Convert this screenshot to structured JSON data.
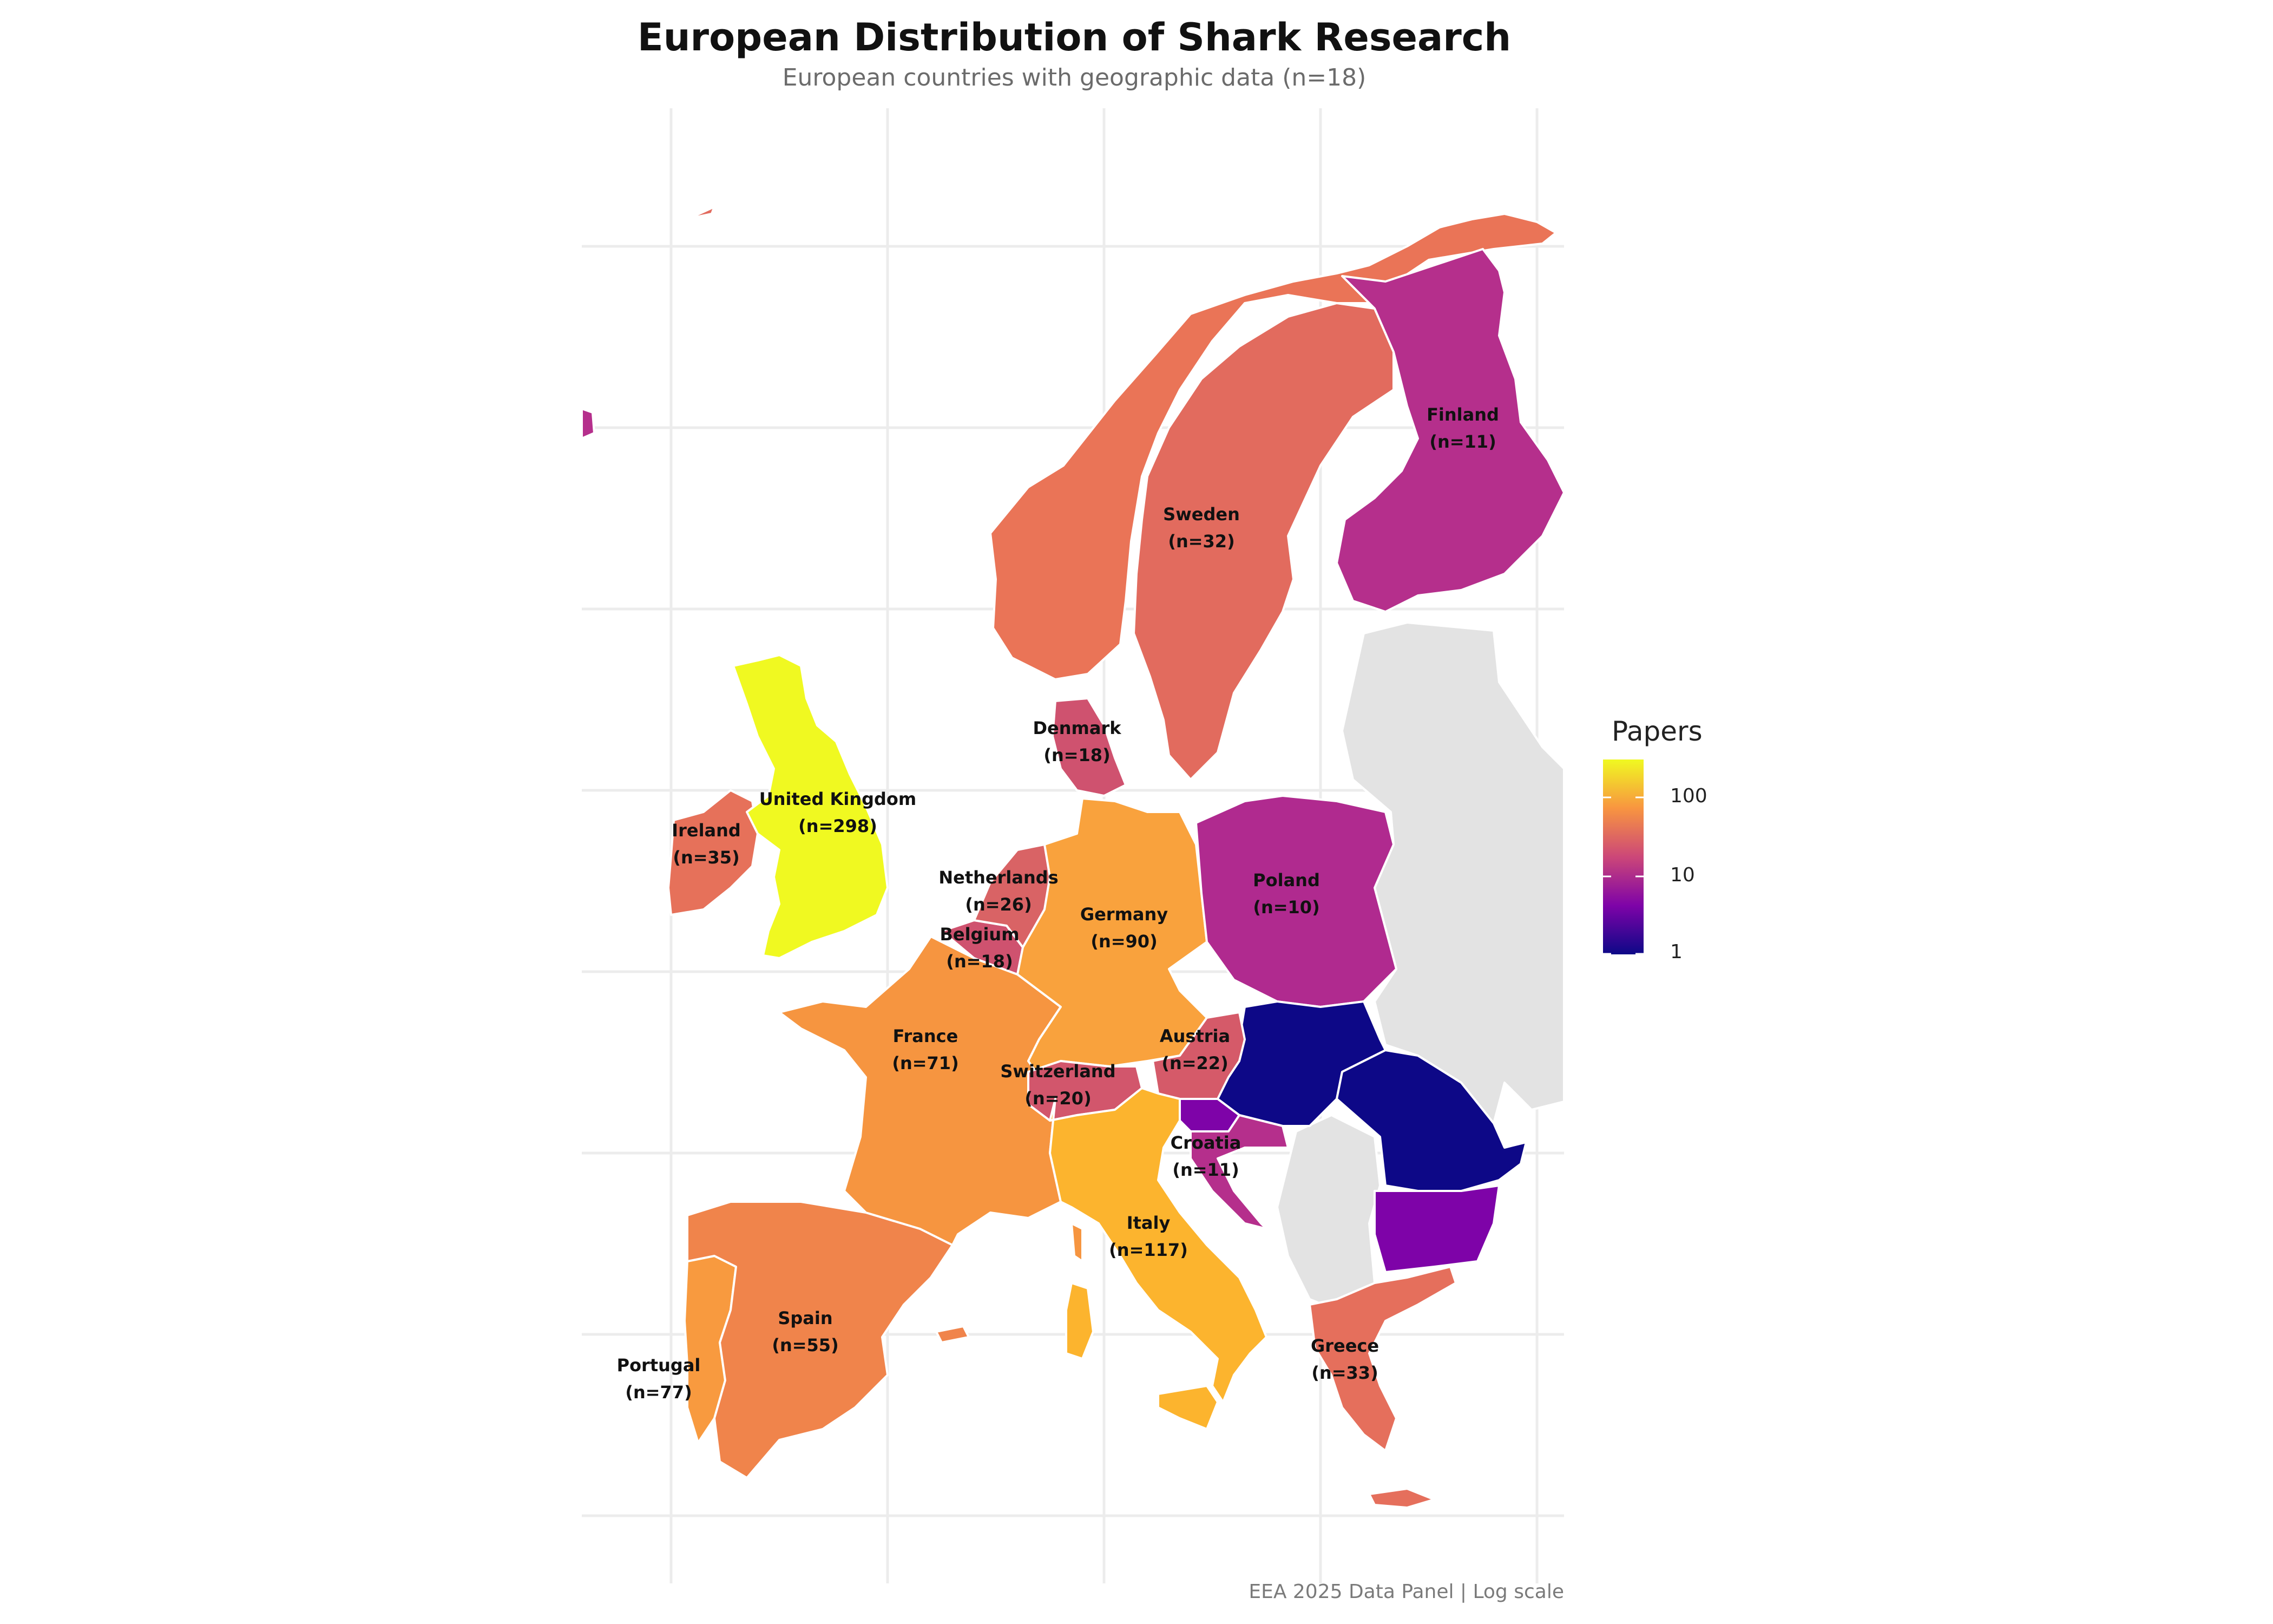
{
  "title": "European Distribution of Shark Research",
  "subtitle": "European countries with geographic data (n=18)",
  "caption": "EEA 2025 Data Panel | Log scale",
  "legend": {
    "title": "Papers",
    "ticks": [
      "100",
      "10",
      "1"
    ],
    "scale": "log",
    "min": 1,
    "max": 298,
    "gradient": [
      "#0d0887",
      "#7e03a8",
      "#cc4778",
      "#f89540",
      "#f0f921"
    ]
  },
  "countries": [
    {
      "id": "uk",
      "label": "United Kingdom",
      "count_label": "(n=298)",
      "papers": 298,
      "color": "#f0f921"
    },
    {
      "id": "italy",
      "label": "Italy",
      "count_label": "(n=117)",
      "papers": 117,
      "color": "#fcb42e"
    },
    {
      "id": "germany",
      "label": "Germany",
      "count_label": "(n=90)",
      "papers": 90,
      "color": "#f9a23d"
    },
    {
      "id": "portugal",
      "label": "Portugal",
      "count_label": "(n=77)",
      "papers": 77,
      "color": "#f89a3f"
    },
    {
      "id": "france",
      "label": "France",
      "count_label": "(n=71)",
      "papers": 71,
      "color": "#f69540"
    },
    {
      "id": "spain",
      "label": "Spain",
      "count_label": "(n=55)",
      "papers": 55,
      "color": "#f0844b"
    },
    {
      "id": "ireland",
      "label": "Ireland",
      "count_label": "(n=35)",
      "papers": 35,
      "color": "#e6715a"
    },
    {
      "id": "greece",
      "label": "Greece",
      "count_label": "(n=33)",
      "papers": 33,
      "color": "#e56f5c"
    },
    {
      "id": "sweden",
      "label": "Sweden",
      "count_label": "(n=32)",
      "papers": 32,
      "color": "#e26b5e"
    },
    {
      "id": "netherlands",
      "label": "Netherlands",
      "count_label": "(n=26)",
      "papers": 26,
      "color": "#d96365"
    },
    {
      "id": "austria",
      "label": "Austria",
      "count_label": "(n=22)",
      "papers": 22,
      "color": "#d55a69"
    },
    {
      "id": "switzerland",
      "label": "Switzerland",
      "count_label": "(n=20)",
      "papers": 20,
      "color": "#d2566c"
    },
    {
      "id": "denmark",
      "label": "Denmark",
      "count_label": "(n=18)",
      "papers": 18,
      "color": "#cf526f"
    },
    {
      "id": "belgium",
      "label": "Belgium",
      "count_label": "(n=18)",
      "papers": 18,
      "color": "#cf526f"
    },
    {
      "id": "finland",
      "label": "Finland",
      "count_label": "(n=11)",
      "papers": 11,
      "color": "#b52f8c"
    },
    {
      "id": "croatia",
      "label": "Croatia",
      "count_label": "(n=11)",
      "papers": 11,
      "color": "#b52f8c"
    },
    {
      "id": "poland",
      "label": "Poland",
      "count_label": "(n=10)",
      "papers": 10,
      "color": "#b02a8f"
    }
  ],
  "unlabeled_regions": [
    {
      "id": "norway",
      "color": "#ea7457"
    },
    {
      "id": "slovenia",
      "color": "#7e03a8"
    },
    {
      "id": "czechia-slovakia-hungary",
      "color": "#0d0887"
    },
    {
      "id": "romania",
      "color": "#0d0887"
    },
    {
      "id": "bulgaria",
      "color": "#7e03a8"
    },
    {
      "id": "iceland-edge",
      "color": "#b52f8c"
    },
    {
      "id": "no-data",
      "color": "#e3e3e3"
    }
  ]
}
